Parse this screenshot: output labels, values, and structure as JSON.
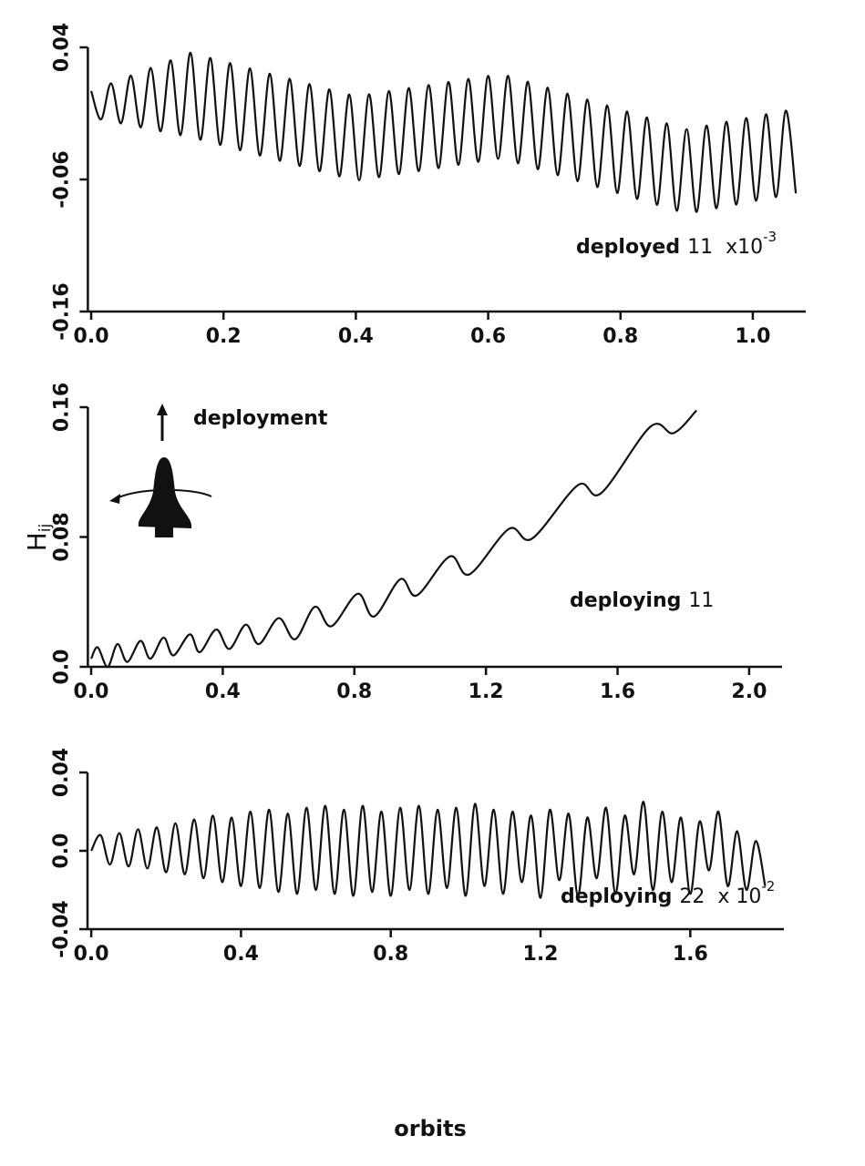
{
  "chart_data": [
    {
      "type": "line",
      "color": "#111111",
      "xlim": [
        -0.005,
        1.08
      ],
      "ylim": [
        -0.16,
        0.04
      ],
      "xticks": [
        {
          "value": 0,
          "label": "0.0"
        },
        0.2,
        0.4,
        0.6,
        0.8,
        {
          "value": 1,
          "label": "1.0"
        }
      ],
      "yticks": [
        -0.16,
        -0.06,
        0.04
      ],
      "annotation": {
        "label": "deployed",
        "index": "11",
        "scale": "x10",
        "exponent": "-3"
      },
      "x": [
        0,
        0.015,
        0.03,
        0.045,
        0.06,
        0.075,
        0.09,
        0.105,
        0.12,
        0.135,
        0.15,
        0.165,
        0.18,
        0.195,
        0.21,
        0.225,
        0.24,
        0.255,
        0.27,
        0.285,
        0.3,
        0.315,
        0.33,
        0.345,
        0.36,
        0.375,
        0.39,
        0.405,
        0.42,
        0.435,
        0.45,
        0.465,
        0.48,
        0.495,
        0.51,
        0.525,
        0.54,
        0.555,
        0.57,
        0.585,
        0.6,
        0.615,
        0.63,
        0.645,
        0.66,
        0.675,
        0.69,
        0.705,
        0.72,
        0.735,
        0.75,
        0.765,
        0.78,
        0.795,
        0.81,
        0.825,
        0.84,
        0.855,
        0.87,
        0.885,
        0.9,
        0.915,
        0.93,
        0.945,
        0.96,
        0.975,
        0.99,
        1.005,
        1.02,
        1.035,
        1.05,
        1.065
      ],
      "values": [
        0.007,
        -0.0145,
        0.0128,
        -0.0175,
        0.0186,
        -0.0205,
        0.0244,
        -0.0235,
        0.0302,
        -0.0265,
        0.036,
        -0.03,
        0.032,
        -0.0339,
        0.0281,
        -0.0379,
        0.0241,
        -0.0419,
        0.0201,
        -0.0459,
        0.0162,
        -0.0498,
        0.0122,
        -0.0538,
        0.0082,
        -0.0577,
        0.0043,
        -0.0606,
        0.0045,
        -0.0583,
        0.0069,
        -0.056,
        0.0092,
        -0.0537,
        0.0115,
        -0.0514,
        0.0138,
        -0.049,
        0.0161,
        -0.0467,
        0.0185,
        -0.0444,
        0.0185,
        -0.0478,
        0.014,
        -0.0523,
        0.0095,
        -0.0568,
        0.005,
        -0.0613,
        0.0005,
        -0.0658,
        -0.004,
        -0.0703,
        -0.0085,
        -0.0748,
        -0.013,
        -0.0793,
        -0.0175,
        -0.0838,
        -0.022,
        -0.0846,
        -0.0192,
        -0.0818,
        -0.0164,
        -0.079,
        -0.0135,
        -0.0761,
        -0.0107,
        -0.0733,
        -0.0079,
        -0.0705
      ]
    },
    {
      "type": "line",
      "color": "#111111",
      "xlim": [
        -0.01,
        2.1
      ],
      "ylim": [
        0,
        0.16
      ],
      "xticks": [
        {
          "value": 0,
          "label": "0.0"
        },
        0.4,
        0.8,
        1.2,
        1.6,
        {
          "value": 2,
          "label": "2.0"
        }
      ],
      "yticks": [
        {
          "value": 0,
          "label": "0.0"
        },
        0.08,
        0.16
      ],
      "y_label": "H",
      "y_label_sub": "ij",
      "note": "deployment",
      "annotation": {
        "label": "deploying",
        "index": "11"
      },
      "x": [
        0,
        0.02,
        0.05,
        0.08,
        0.11,
        0.15,
        0.18,
        0.22,
        0.25,
        0.3,
        0.33,
        0.38,
        0.42,
        0.47,
        0.51,
        0.57,
        0.62,
        0.68,
        0.73,
        0.81,
        0.86,
        0.94,
        0.99,
        1.09,
        1.15,
        1.27,
        1.34,
        1.48,
        1.55,
        1.7,
        1.77,
        1.84
      ],
      "values": [
        0.005,
        0.012,
        0.0,
        0.014,
        0.003,
        0.016,
        0.005,
        0.018,
        0.007,
        0.02,
        0.009,
        0.023,
        0.011,
        0.026,
        0.014,
        0.03,
        0.017,
        0.037,
        0.025,
        0.045,
        0.031,
        0.054,
        0.044,
        0.068,
        0.057,
        0.085,
        0.079,
        0.112,
        0.107,
        0.148,
        0.144,
        0.158
      ]
    },
    {
      "type": "line",
      "color": "#111111",
      "xlim": [
        -0.01,
        1.85
      ],
      "ylim": [
        -0.04,
        0.04
      ],
      "xticks": [
        {
          "value": 0,
          "label": "0.0"
        },
        0.4,
        0.8,
        1.2,
        1.6
      ],
      "yticks": [
        -0.04,
        {
          "value": 0,
          "label": "0.0"
        },
        0.04
      ],
      "annotation": {
        "label": "deploying",
        "index": "22",
        "scale": "x 10",
        "exponent": "-2"
      },
      "x": [
        0,
        0.025,
        0.05,
        0.075,
        0.1,
        0.125,
        0.15,
        0.175,
        0.2,
        0.225,
        0.25,
        0.275,
        0.3,
        0.325,
        0.35,
        0.375,
        0.4,
        0.425,
        0.45,
        0.475,
        0.5,
        0.525,
        0.55,
        0.575,
        0.6,
        0.625,
        0.65,
        0.675,
        0.7,
        0.725,
        0.75,
        0.775,
        0.8,
        0.825,
        0.85,
        0.875,
        0.9,
        0.925,
        0.95,
        0.975,
        1,
        1.025,
        1.05,
        1.075,
        1.1,
        1.125,
        1.15,
        1.175,
        1.2,
        1.225,
        1.25,
        1.275,
        1.3,
        1.325,
        1.35,
        1.375,
        1.4,
        1.425,
        1.45,
        1.475,
        1.5,
        1.525,
        1.55,
        1.575,
        1.6,
        1.625,
        1.65,
        1.675,
        1.7,
        1.725,
        1.75,
        1.775,
        1.8
      ],
      "values": [
        0,
        0.008,
        -0.007,
        0.009,
        -0.008,
        0.011,
        -0.009,
        0.012,
        -0.011,
        0.014,
        -0.012,
        0.016,
        -0.014,
        0.018,
        -0.016,
        0.017,
        -0.018,
        0.02,
        -0.019,
        0.021,
        -0.021,
        0.019,
        -0.022,
        0.022,
        -0.02,
        0.023,
        -0.022,
        0.021,
        -0.023,
        0.023,
        -0.021,
        0.02,
        -0.023,
        0.022,
        -0.02,
        0.023,
        -0.022,
        0.021,
        -0.019,
        0.022,
        -0.023,
        0.024,
        -0.018,
        0.021,
        -0.022,
        0.02,
        -0.016,
        0.018,
        -0.024,
        0.021,
        -0.015,
        0.019,
        -0.023,
        0.017,
        -0.014,
        0.022,
        -0.022,
        0.018,
        -0.012,
        0.025,
        -0.02,
        0.02,
        -0.016,
        0.017,
        -0.022,
        0.015,
        -0.01,
        0.02,
        -0.018,
        0.01,
        -0.02,
        0.005,
        -0.018
      ]
    }
  ],
  "x_label": "orbits"
}
